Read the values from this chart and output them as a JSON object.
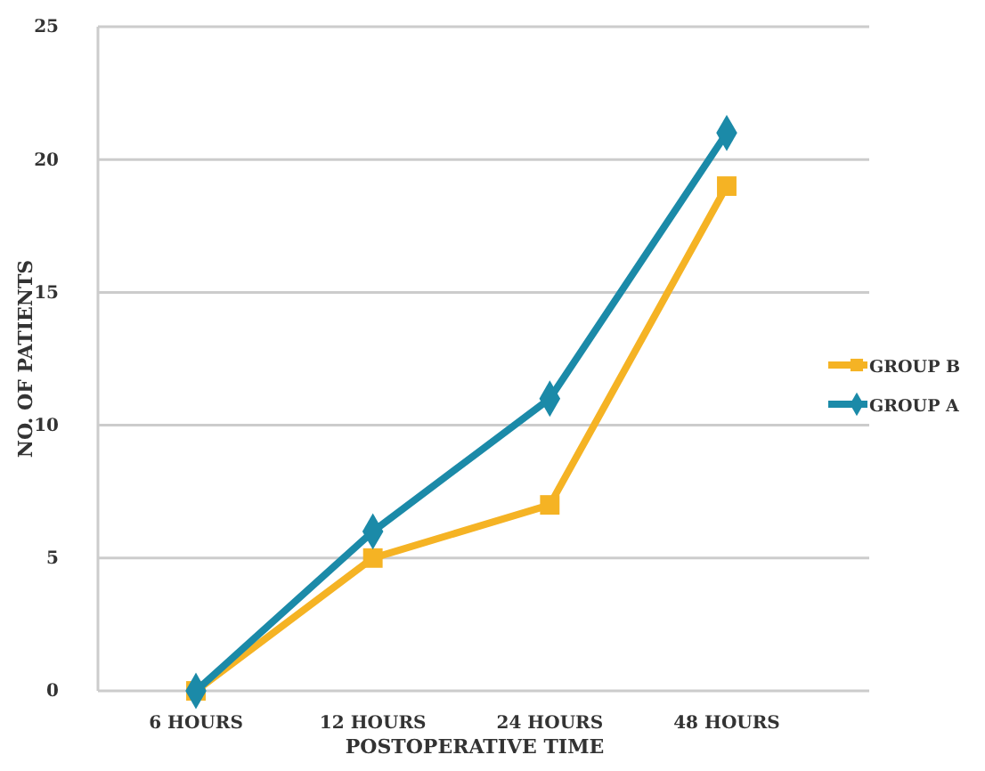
{
  "chart_data": {
    "type": "line",
    "xlabel": "POSTOPERATIVE TIME",
    "ylabel": "NO. OF PATIENTS",
    "categories": [
      "6 HOURS",
      "12 HOURS",
      "24 HOURS",
      "48 HOURS"
    ],
    "series": [
      {
        "name": "GROUP B",
        "color": "#f5b324",
        "values": [
          0,
          5,
          7,
          19
        ],
        "marker": "square"
      },
      {
        "name": "GROUP A",
        "color": "#1b8aa8",
        "values": [
          0,
          6,
          11,
          21
        ],
        "marker": "diamond"
      }
    ],
    "ylim": [
      0,
      25
    ],
    "yticks": [
      0,
      5,
      10,
      15,
      20,
      25
    ],
    "grid": "y",
    "legend": "right"
  }
}
